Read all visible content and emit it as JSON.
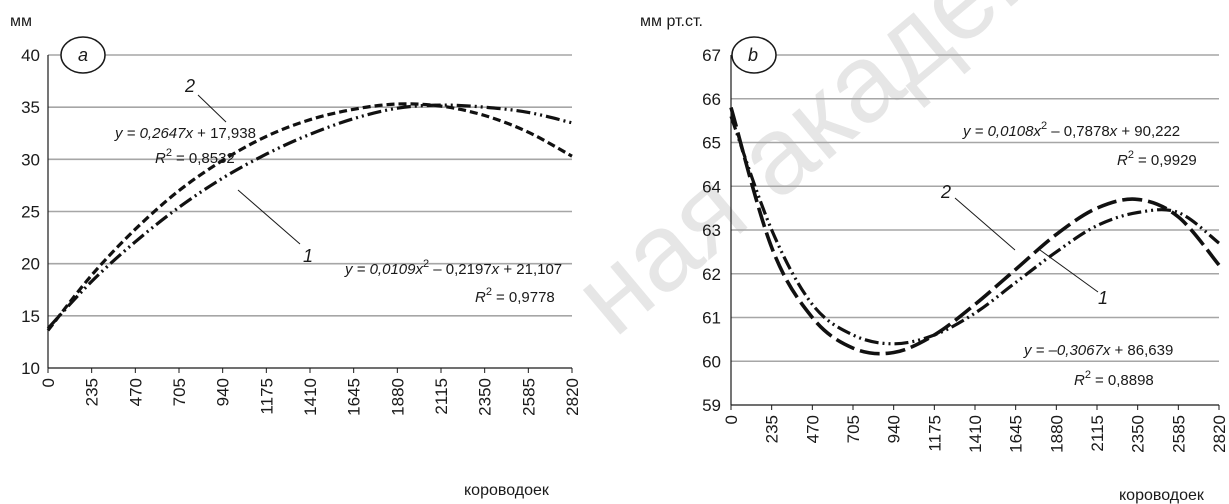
{
  "chart_data": [
    {
      "type": "line",
      "panel": "a",
      "ylabel": "мм",
      "xlabel": "короводоек",
      "x_ticks": [
        0,
        235,
        470,
        705,
        940,
        1175,
        1410,
        1645,
        1880,
        2115,
        2350,
        2585,
        2820
      ],
      "ylim": [
        10,
        40
      ],
      "y_ticks": [
        10,
        15,
        20,
        25,
        30,
        35,
        40
      ],
      "grid": true,
      "series": [
        {
          "name": "2",
          "style": "dashed",
          "x": [
            0,
            235,
            470,
            705,
            940,
            1175,
            1410,
            1645,
            1880,
            2115,
            2350,
            2585,
            2820
          ],
          "values": [
            13.6,
            18.9,
            23.3,
            27.0,
            29.9,
            32.2,
            33.8,
            34.8,
            35.3,
            35.1,
            34.2,
            32.6,
            30.3
          ]
        },
        {
          "name": "1",
          "style": "dash-dot-dot",
          "x": [
            0,
            235,
            470,
            705,
            940,
            1175,
            1410,
            1645,
            1880,
            2115,
            2350,
            2585,
            2820
          ],
          "values": [
            13.8,
            18.3,
            22.1,
            25.4,
            28.2,
            30.5,
            32.4,
            33.9,
            34.9,
            35.2,
            35.0,
            34.5,
            33.5
          ]
        }
      ],
      "annotations": [
        {
          "eq_prefix": "y = 0,2647",
          "var": "x",
          "eq_rest": " + 17,938",
          "r2": "= 0,8532"
        },
        {
          "eq_prefix": "y = 0,0109",
          "var": "x",
          "sup": "2",
          "eq_mid": " – 0,2197",
          "var2": "x",
          "eq_rest": " + 21,107",
          "r2": "= 0,9778"
        }
      ]
    },
    {
      "type": "line",
      "panel": "b",
      "ylabel": "мм рт.ст.",
      "xlabel": "короводоек",
      "x_ticks": [
        0,
        235,
        470,
        705,
        940,
        1175,
        1410,
        1645,
        1880,
        2115,
        2350,
        2585,
        2820
      ],
      "ylim": [
        59,
        67
      ],
      "y_ticks": [
        59,
        60,
        61,
        62,
        63,
        64,
        65,
        66,
        67
      ],
      "grid": true,
      "series": [
        {
          "name": "2",
          "style": "long-dash",
          "x": [
            0,
            235,
            470,
            705,
            940,
            1175,
            1410,
            1645,
            1880,
            2115,
            2350,
            2585,
            2820
          ],
          "values": [
            65.8,
            62.6,
            61.0,
            60.3,
            60.2,
            60.6,
            61.3,
            62.1,
            62.9,
            63.5,
            63.7,
            63.3,
            62.2
          ]
        },
        {
          "name": "1",
          "style": "dash-dot-dot",
          "x": [
            0,
            235,
            470,
            705,
            940,
            1175,
            1410,
            1645,
            1880,
            2115,
            2350,
            2585,
            2820
          ],
          "values": [
            65.6,
            63.0,
            61.3,
            60.6,
            60.4,
            60.6,
            61.1,
            61.8,
            62.5,
            63.1,
            63.4,
            63.4,
            62.7
          ]
        }
      ],
      "annotations": [
        {
          "eq_prefix": "y = 0,0108",
          "var": "x",
          "sup": "2",
          "eq_mid": " – 0,7878",
          "var2": "x",
          "eq_rest": " + 90,222",
          "r2": "= 0,9929"
        },
        {
          "eq_prefix": "y = –0,3067",
          "var": "x",
          "eq_rest": " + 86,639",
          "r2": "= 0,8898"
        }
      ]
    }
  ],
  "watermark": "ная академия"
}
